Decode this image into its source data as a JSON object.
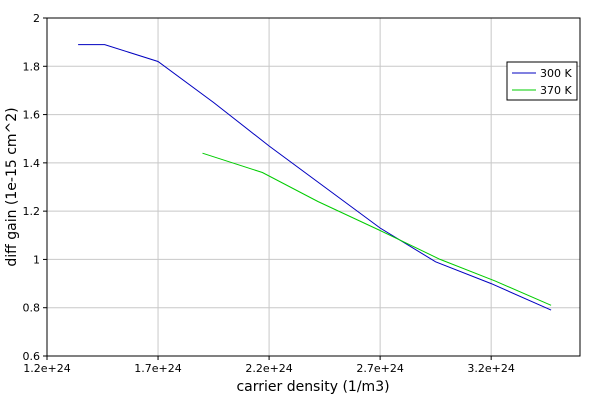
{
  "chart_data": {
    "type": "line",
    "xlabel": "carrier density (1/m3)",
    "ylabel": "diff gain (1e-15 cm^2)",
    "xlim": [
      1.2e+24,
      3.6e+24
    ],
    "ylim": [
      0.6,
      2.0
    ],
    "x_ticks": [
      1.2e+24,
      1.7e+24,
      2.2e+24,
      2.7e+24,
      3.2e+24
    ],
    "x_tick_labels": [
      "1.2e+24",
      "1.7e+24",
      "2.2e+24",
      "2.7e+24",
      "3.2e+24"
    ],
    "y_ticks": [
      0.6,
      0.8,
      1.0,
      1.2,
      1.4,
      1.6,
      1.8,
      2.0
    ],
    "y_tick_labels": [
      "0.6",
      "0.8",
      "1",
      "1.2",
      "1.4",
      "1.6",
      "1.8",
      "2"
    ],
    "grid": true,
    "legend_position": "top-right",
    "series": [
      {
        "name": "300 K",
        "color": "#0000c0",
        "x": [
          1.34e+24,
          1.46e+24,
          1.7e+24,
          1.95e+24,
          2.2e+24,
          2.45e+24,
          2.7e+24,
          2.95e+24,
          3.2e+24,
          3.47e+24
        ],
        "y": [
          1.89,
          1.89,
          1.82,
          1.65,
          1.47,
          1.3,
          1.13,
          0.99,
          0.9,
          0.79
        ]
      },
      {
        "name": "370 K",
        "color": "#00cc00",
        "x": [
          1.9e+24,
          2.17e+24,
          2.42e+24,
          2.7e+24,
          2.97e+24,
          3.22e+24,
          3.47e+24
        ],
        "y": [
          1.44,
          1.36,
          1.24,
          1.12,
          1.0,
          0.91,
          0.81
        ]
      }
    ]
  }
}
